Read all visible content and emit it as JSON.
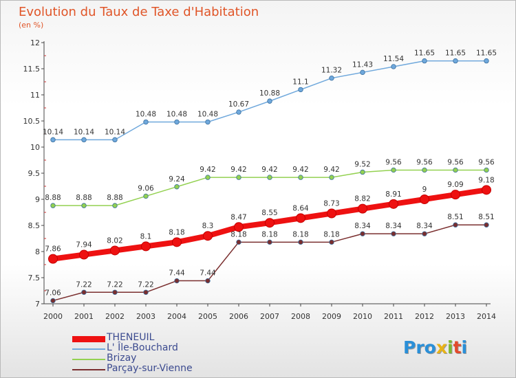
{
  "title": "Evolution du Taux de Taxe d'Habitation",
  "subtitle": "(en %)",
  "brand": {
    "name": "Proxiti",
    "letters": [
      "P",
      "r",
      "o",
      "x",
      "i",
      "t",
      "i"
    ],
    "colors": [
      "#2a8fd8",
      "#2a8fd8",
      "#2a8fd8",
      "#e8b316",
      "#7cb82f",
      "#e24a2c",
      "#2a8fd8"
    ]
  },
  "chart_data": {
    "type": "line",
    "title": "Evolution du Taux de Taxe d'Habitation",
    "ylabel": "(en %)",
    "xlabel": "",
    "x": [
      2000,
      2001,
      2002,
      2003,
      2004,
      2005,
      2006,
      2007,
      2008,
      2009,
      2010,
      2011,
      2012,
      2013,
      2014
    ],
    "ylim": [
      7,
      12
    ],
    "yticks": [
      7,
      7.5,
      8,
      8.5,
      9,
      9.5,
      10,
      10.5,
      11,
      11.5,
      12
    ],
    "grid": false,
    "legend_position": "bottom-left",
    "series": [
      {
        "name": "THENEUIL",
        "color": "#ee1111",
        "values": [
          7.86,
          7.94,
          8.02,
          8.1,
          8.18,
          8.3,
          8.47,
          8.55,
          8.64,
          8.73,
          8.82,
          8.91,
          9,
          9.09,
          9.18
        ],
        "labels": [
          "7.86",
          "7.94",
          "8.02",
          "8.1",
          "8.18",
          "8.3",
          "8.47",
          "8.55",
          "8.64",
          "8.73",
          "8.82",
          "8.91",
          "9",
          "9.09",
          "9.18"
        ]
      },
      {
        "name": "L' Île-Bouchard",
        "color": "#6fa8dc",
        "values": [
          10.14,
          10.14,
          10.14,
          10.48,
          10.48,
          10.48,
          10.67,
          10.88,
          11.1,
          11.32,
          11.43,
          11.54,
          11.65,
          11.65,
          11.65
        ],
        "labels": [
          "10.14",
          "10.14",
          "10.14",
          "10.48",
          "10.48",
          "10.48",
          "10.67",
          "10.88",
          "11.1",
          "11.32",
          "11.43",
          "11.54",
          "11.65",
          "11.65",
          "11.65"
        ]
      },
      {
        "name": "Brizay",
        "color": "#93d150",
        "values": [
          8.88,
          8.88,
          8.88,
          9.06,
          9.24,
          9.42,
          9.42,
          9.42,
          9.42,
          9.42,
          9.52,
          9.56,
          9.56,
          9.56,
          9.56
        ],
        "labels": [
          "8.88",
          "8.88",
          "8.88",
          "9.06",
          "9.24",
          "9.42",
          "9.42",
          "9.42",
          "9.42",
          "9.42",
          "9.52",
          "9.56",
          "9.56",
          "9.56",
          "9.56"
        ]
      },
      {
        "name": "Parçay-sur-Vienne",
        "color": "#7a2e2e",
        "values": [
          7.06,
          7.22,
          7.22,
          7.22,
          7.44,
          7.44,
          8.18,
          8.18,
          8.18,
          8.18,
          8.34,
          8.34,
          8.34,
          8.51,
          8.51
        ],
        "labels": [
          "7.06",
          "7.22",
          "7.22",
          "7.22",
          "7.44",
          "7.44",
          "8.18",
          "8.18",
          "8.18",
          "8.18",
          "8.34",
          "8.34",
          "8.34",
          "8.51",
          "8.51"
        ]
      }
    ]
  }
}
